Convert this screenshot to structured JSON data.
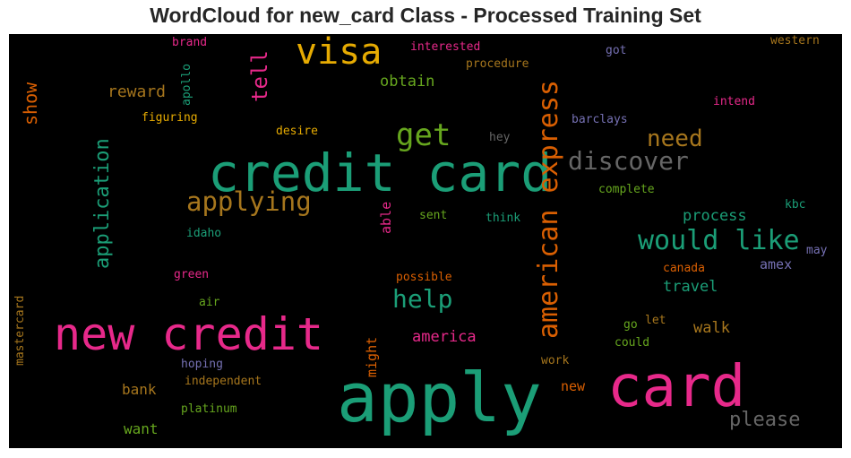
{
  "title": "WordCloud for new_card Class - Processed Training Set",
  "colors": {
    "pink": "#e7298a",
    "teal": "#1b9e77",
    "orange": "#d95f02",
    "gold": "#e6ab02",
    "olive": "#66a61e",
    "brown": "#a6761d",
    "gray": "#666666",
    "purple": "#7570b3",
    "background": "#000000"
  },
  "words": [
    {
      "id": "credit-card",
      "text": "credit card",
      "color": "#1b9e77"
    },
    {
      "id": "apply",
      "text": "apply",
      "color": "#1b9e77"
    },
    {
      "id": "card",
      "text": "card",
      "color": "#e7298a"
    },
    {
      "id": "new-credit",
      "text": "new credit",
      "color": "#e7298a"
    },
    {
      "id": "visa",
      "text": "visa",
      "color": "#e6ab02"
    },
    {
      "id": "american-express",
      "text": "american express",
      "color": "#d95f02"
    },
    {
      "id": "would-like",
      "text": "would like",
      "color": "#1b9e77"
    },
    {
      "id": "discover",
      "text": "discover",
      "color": "#666666"
    },
    {
      "id": "applying",
      "text": "applying",
      "color": "#a6761d"
    },
    {
      "id": "get",
      "text": "get",
      "color": "#66a61e"
    },
    {
      "id": "help",
      "text": "help",
      "color": "#1b9e77"
    },
    {
      "id": "need",
      "text": "need",
      "color": "#a6761d"
    },
    {
      "id": "application",
      "text": "application",
      "color": "#1b9e77"
    },
    {
      "id": "tell",
      "text": "tell",
      "color": "#e7298a"
    },
    {
      "id": "please",
      "text": "please",
      "color": "#666666"
    },
    {
      "id": "show",
      "text": "show",
      "color": "#d95f02"
    },
    {
      "id": "reward",
      "text": "reward",
      "color": "#a6761d"
    },
    {
      "id": "obtain",
      "text": "obtain",
      "color": "#66a61e"
    },
    {
      "id": "process",
      "text": "process",
      "color": "#1b9e77"
    },
    {
      "id": "travel",
      "text": "travel",
      "color": "#1b9e77"
    },
    {
      "id": "walk",
      "text": "walk",
      "color": "#a6761d"
    },
    {
      "id": "america",
      "text": "america",
      "color": "#e7298a"
    },
    {
      "id": "amex",
      "text": "amex",
      "color": "#7570b3"
    },
    {
      "id": "bank",
      "text": "bank",
      "color": "#a6761d"
    },
    {
      "id": "want",
      "text": "want",
      "color": "#66a61e"
    },
    {
      "id": "new",
      "text": "new",
      "color": "#d95f02"
    },
    {
      "id": "might",
      "text": "might",
      "color": "#d95f02"
    },
    {
      "id": "able",
      "text": "able",
      "color": "#e7298a"
    },
    {
      "id": "brand",
      "text": "brand",
      "color": "#e7298a"
    },
    {
      "id": "apollo",
      "text": "apollo",
      "color": "#1b9e77"
    },
    {
      "id": "interested",
      "text": "interested",
      "color": "#e7298a"
    },
    {
      "id": "procedure",
      "text": "procedure",
      "color": "#a6761d"
    },
    {
      "id": "got",
      "text": "got",
      "color": "#7570b3"
    },
    {
      "id": "western",
      "text": "western",
      "color": "#a6761d"
    },
    {
      "id": "intend",
      "text": "intend",
      "color": "#e7298a"
    },
    {
      "id": "barclays",
      "text": "barclays",
      "color": "#7570b3"
    },
    {
      "id": "figuring",
      "text": "figuring",
      "color": "#e6ab02"
    },
    {
      "id": "desire",
      "text": "desire",
      "color": "#e6ab02"
    },
    {
      "id": "hey",
      "text": "hey",
      "color": "#666666"
    },
    {
      "id": "complete",
      "text": "complete",
      "color": "#66a61e"
    },
    {
      "id": "kbc",
      "text": "kbc",
      "color": "#1b9e77"
    },
    {
      "id": "may",
      "text": "may",
      "color": "#7570b3"
    },
    {
      "id": "idaho",
      "text": "idaho",
      "color": "#1b9e77"
    },
    {
      "id": "sent",
      "text": "sent",
      "color": "#66a61e"
    },
    {
      "id": "think",
      "text": "think",
      "color": "#1b9e77"
    },
    {
      "id": "canada",
      "text": "canada",
      "color": "#d95f02"
    },
    {
      "id": "green",
      "text": "green",
      "color": "#e7298a"
    },
    {
      "id": "possible",
      "text": "possible",
      "color": "#d95f02"
    },
    {
      "id": "air",
      "text": "air",
      "color": "#66a61e"
    },
    {
      "id": "mastercard",
      "text": "mastercard",
      "color": "#a6761d"
    },
    {
      "id": "go",
      "text": "go",
      "color": "#66a61e"
    },
    {
      "id": "let",
      "text": "let",
      "color": "#a6761d"
    },
    {
      "id": "could",
      "text": "could",
      "color": "#66a61e"
    },
    {
      "id": "hoping",
      "text": "hoping",
      "color": "#7570b3"
    },
    {
      "id": "work",
      "text": "work",
      "color": "#a6761d"
    },
    {
      "id": "independent",
      "text": "independent",
      "color": "#a6761d"
    },
    {
      "id": "platinum",
      "text": "platinum",
      "color": "#66a61e"
    }
  ]
}
